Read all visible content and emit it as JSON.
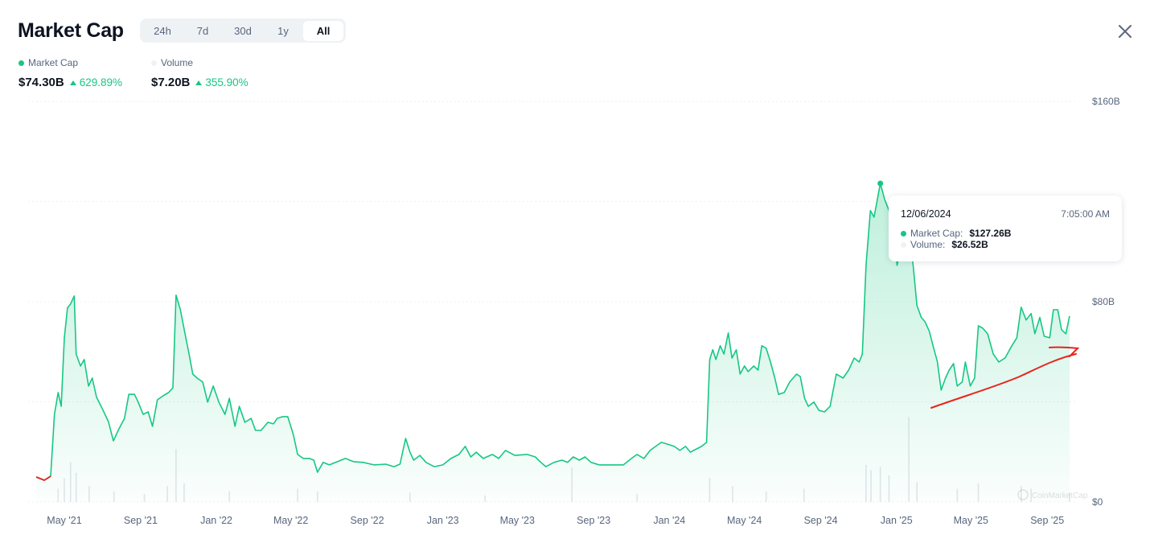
{
  "header": {
    "title": "Market Cap",
    "ranges": [
      "24h",
      "7d",
      "30d",
      "1y",
      "All"
    ],
    "active_range": "All",
    "close_icon": "close-icon"
  },
  "legend": {
    "market_cap": {
      "label": "Market Cap",
      "value": "$74.30B",
      "change": "629.89%",
      "color": "#16c784"
    },
    "volume": {
      "label": "Volume",
      "value": "$7.20B",
      "change": "355.90%",
      "color": "#eff2f5"
    }
  },
  "tooltip": {
    "date": "12/06/2024",
    "time": "7:05:00 AM",
    "market_cap_label": "Market Cap:",
    "market_cap_value": "$127.26B",
    "volume_label": "Volume:",
    "volume_value": "$26.52B"
  },
  "watermark": "CoinMarketCap",
  "chart_data": {
    "type": "area",
    "ylim": [
      0,
      160
    ],
    "y_ticks": [
      {
        "value": 0,
        "label": "$0"
      },
      {
        "value": 80,
        "label": "$80B"
      },
      {
        "value": 160,
        "label": "$160B"
      }
    ],
    "y_grid": [
      0,
      40,
      80,
      120,
      160
    ],
    "x_ticks": [
      {
        "date": "2021-05-01",
        "label": "May '21"
      },
      {
        "date": "2021-09-01",
        "label": "Sep '21"
      },
      {
        "date": "2022-01-01",
        "label": "Jan '22"
      },
      {
        "date": "2022-05-01",
        "label": "May '22"
      },
      {
        "date": "2022-09-01",
        "label": "Sep '22"
      },
      {
        "date": "2023-01-01",
        "label": "Jan '23"
      },
      {
        "date": "2023-05-01",
        "label": "May '23"
      },
      {
        "date": "2023-09-01",
        "label": "Sep '23"
      },
      {
        "date": "2024-01-01",
        "label": "Jan '24"
      },
      {
        "date": "2024-05-01",
        "label": "May '24"
      },
      {
        "date": "2024-09-01",
        "label": "Sep '24"
      },
      {
        "date": "2025-01-01",
        "label": "Jan '25"
      },
      {
        "date": "2025-05-01",
        "label": "May '25"
      },
      {
        "date": "2025-09-01",
        "label": "Sep '25"
      }
    ],
    "grid": true,
    "highlight": {
      "date": "2024-12-06",
      "value": 127.26
    },
    "series": [
      {
        "name": "Market Cap",
        "color": "#16c784",
        "unit": "B USD",
        "points": [
          [
            "2021-03-17",
            10.0
          ],
          [
            "2021-03-30",
            8.7
          ],
          [
            "2021-04-09",
            10.3
          ],
          [
            "2021-04-15",
            35.0
          ],
          [
            "2021-04-21",
            43.7
          ],
          [
            "2021-04-26",
            38.2
          ],
          [
            "2021-05-01",
            65.6
          ],
          [
            "2021-05-06",
            77.5
          ],
          [
            "2021-05-11",
            79.1
          ],
          [
            "2021-05-17",
            82.3
          ],
          [
            "2021-05-20",
            59.1
          ],
          [
            "2021-05-27",
            54.3
          ],
          [
            "2021-06-02",
            56.9
          ],
          [
            "2021-06-09",
            46.3
          ],
          [
            "2021-06-15",
            49.5
          ],
          [
            "2021-06-22",
            41.8
          ],
          [
            "2021-07-02",
            36.9
          ],
          [
            "2021-07-11",
            32.1
          ],
          [
            "2021-07-19",
            24.4
          ],
          [
            "2021-07-28",
            29.2
          ],
          [
            "2021-08-06",
            33.4
          ],
          [
            "2021-08-13",
            43.0
          ],
          [
            "2021-08-22",
            43.0
          ],
          [
            "2021-08-28",
            39.9
          ],
          [
            "2021-09-05",
            35.0
          ],
          [
            "2021-09-13",
            36.0
          ],
          [
            "2021-09-20",
            30.2
          ],
          [
            "2021-09-28",
            40.8
          ],
          [
            "2021-10-07",
            42.4
          ],
          [
            "2021-10-16",
            43.7
          ],
          [
            "2021-10-23",
            45.6
          ],
          [
            "2021-10-28",
            82.6
          ],
          [
            "2021-11-04",
            76.8
          ],
          [
            "2021-11-11",
            67.8
          ],
          [
            "2021-11-18",
            59.1
          ],
          [
            "2021-11-24",
            51.1
          ],
          [
            "2021-12-01",
            49.5
          ],
          [
            "2021-12-10",
            47.9
          ],
          [
            "2021-12-18",
            39.9
          ],
          [
            "2021-12-27",
            46.3
          ],
          [
            "2022-01-05",
            39.9
          ],
          [
            "2022-01-15",
            35.0
          ],
          [
            "2022-01-22",
            41.4
          ],
          [
            "2022-01-31",
            30.2
          ],
          [
            "2022-02-07",
            38.2
          ],
          [
            "2022-02-16",
            31.8
          ],
          [
            "2022-02-26",
            33.4
          ],
          [
            "2022-03-05",
            28.6
          ],
          [
            "2022-03-14",
            28.6
          ],
          [
            "2022-03-25",
            31.8
          ],
          [
            "2022-04-03",
            31.2
          ],
          [
            "2022-04-09",
            33.4
          ],
          [
            "2022-04-18",
            34.1
          ],
          [
            "2022-04-26",
            34.1
          ],
          [
            "2022-05-05",
            27.0
          ],
          [
            "2022-05-12",
            19.0
          ],
          [
            "2022-05-21",
            17.4
          ],
          [
            "2022-05-31",
            17.4
          ],
          [
            "2022-06-07",
            16.7
          ],
          [
            "2022-06-13",
            11.9
          ],
          [
            "2022-06-22",
            15.8
          ],
          [
            "2022-07-02",
            14.8
          ],
          [
            "2022-07-15",
            16.1
          ],
          [
            "2022-07-28",
            17.4
          ],
          [
            "2022-08-10",
            16.1
          ],
          [
            "2022-08-26",
            15.8
          ],
          [
            "2022-09-12",
            14.8
          ],
          [
            "2022-10-01",
            15.1
          ],
          [
            "2022-10-14",
            14.1
          ],
          [
            "2022-10-24",
            15.1
          ],
          [
            "2022-11-02",
            25.4
          ],
          [
            "2022-11-09",
            19.9
          ],
          [
            "2022-11-15",
            16.7
          ],
          [
            "2022-11-25",
            18.6
          ],
          [
            "2022-12-05",
            15.8
          ],
          [
            "2022-12-18",
            14.1
          ],
          [
            "2023-01-01",
            14.8
          ],
          [
            "2023-01-14",
            17.4
          ],
          [
            "2023-01-27",
            19.0
          ],
          [
            "2023-02-06",
            22.2
          ],
          [
            "2023-02-15",
            18.0
          ],
          [
            "2023-02-24",
            19.9
          ],
          [
            "2023-03-07",
            17.4
          ],
          [
            "2023-03-22",
            19.0
          ],
          [
            "2023-04-01",
            17.4
          ],
          [
            "2023-04-12",
            20.6
          ],
          [
            "2023-04-27",
            18.6
          ],
          [
            "2023-05-17",
            19.0
          ],
          [
            "2023-05-30",
            18.0
          ],
          [
            "2023-06-08",
            15.8
          ],
          [
            "2023-06-16",
            14.1
          ],
          [
            "2023-06-29",
            15.8
          ],
          [
            "2023-07-12",
            16.7
          ],
          [
            "2023-07-21",
            15.8
          ],
          [
            "2023-07-30",
            18.0
          ],
          [
            "2023-08-09",
            16.7
          ],
          [
            "2023-08-18",
            18.0
          ],
          [
            "2023-08-28",
            15.8
          ],
          [
            "2023-09-10",
            14.8
          ],
          [
            "2023-09-30",
            14.8
          ],
          [
            "2023-10-19",
            14.8
          ],
          [
            "2023-11-01",
            17.4
          ],
          [
            "2023-11-10",
            19.0
          ],
          [
            "2023-11-21",
            17.4
          ],
          [
            "2023-12-01",
            20.6
          ],
          [
            "2023-12-10",
            22.2
          ],
          [
            "2023-12-19",
            23.8
          ],
          [
            "2023-12-29",
            23.1
          ],
          [
            "2024-01-09",
            22.2
          ],
          [
            "2024-01-18",
            20.6
          ],
          [
            "2024-01-27",
            22.2
          ],
          [
            "2024-02-04",
            19.9
          ],
          [
            "2024-02-14",
            21.2
          ],
          [
            "2024-02-22",
            22.2
          ],
          [
            "2024-03-01",
            23.8
          ],
          [
            "2024-03-06",
            56.9
          ],
          [
            "2024-03-11",
            60.8
          ],
          [
            "2024-03-16",
            56.9
          ],
          [
            "2024-03-23",
            62.4
          ],
          [
            "2024-03-29",
            59.1
          ],
          [
            "2024-04-05",
            67.5
          ],
          [
            "2024-04-11",
            57.5
          ],
          [
            "2024-04-18",
            60.8
          ],
          [
            "2024-04-24",
            51.1
          ],
          [
            "2024-05-01",
            54.3
          ],
          [
            "2024-05-07",
            52.1
          ],
          [
            "2024-05-16",
            54.3
          ],
          [
            "2024-05-23",
            52.7
          ],
          [
            "2024-05-29",
            62.4
          ],
          [
            "2024-06-05",
            61.4
          ],
          [
            "2024-06-12",
            55.9
          ],
          [
            "2024-06-19",
            49.5
          ],
          [
            "2024-06-25",
            43.0
          ],
          [
            "2024-07-04",
            43.7
          ],
          [
            "2024-07-13",
            47.9
          ],
          [
            "2024-07-24",
            51.1
          ],
          [
            "2024-07-30",
            50.1
          ],
          [
            "2024-08-06",
            41.4
          ],
          [
            "2024-08-12",
            38.2
          ],
          [
            "2024-08-21",
            39.9
          ],
          [
            "2024-08-29",
            36.6
          ],
          [
            "2024-09-07",
            36.0
          ],
          [
            "2024-09-16",
            38.2
          ],
          [
            "2024-09-26",
            51.1
          ],
          [
            "2024-10-07",
            49.5
          ],
          [
            "2024-10-16",
            52.7
          ],
          [
            "2024-10-25",
            57.5
          ],
          [
            "2024-11-02",
            55.9
          ],
          [
            "2024-11-07",
            59.1
          ],
          [
            "2024-11-13",
            94.5
          ],
          [
            "2024-11-20",
            116.4
          ],
          [
            "2024-11-26",
            113.8
          ],
          [
            "2024-12-02",
            122.0
          ],
          [
            "2024-12-06",
            127.26
          ],
          [
            "2024-12-13",
            120.8
          ],
          [
            "2024-12-20",
            116.4
          ],
          [
            "2024-12-26",
            110.6
          ],
          [
            "2025-01-02",
            94.5
          ],
          [
            "2025-01-08",
            100.9
          ],
          [
            "2025-01-15",
            97.7
          ],
          [
            "2025-01-21",
            107.3
          ],
          [
            "2025-01-28",
            94.5
          ],
          [
            "2025-02-03",
            78.5
          ],
          [
            "2025-02-10",
            73.7
          ],
          [
            "2025-02-16",
            72.0
          ],
          [
            "2025-02-23",
            68.2
          ],
          [
            "2025-03-01",
            62.4
          ],
          [
            "2025-03-08",
            56.0
          ],
          [
            "2025-03-14",
            44.7
          ],
          [
            "2025-03-21",
            49.5
          ],
          [
            "2025-03-27",
            52.7
          ],
          [
            "2025-04-03",
            55.3
          ],
          [
            "2025-04-09",
            46.3
          ],
          [
            "2025-04-17",
            47.9
          ],
          [
            "2025-04-22",
            55.9
          ],
          [
            "2025-04-30",
            46.3
          ],
          [
            "2025-05-07",
            49.5
          ],
          [
            "2025-05-13",
            70.4
          ],
          [
            "2025-05-20",
            69.4
          ],
          [
            "2025-05-28",
            67.2
          ],
          [
            "2025-06-06",
            59.1
          ],
          [
            "2025-06-15",
            55.9
          ],
          [
            "2025-06-25",
            57.5
          ],
          [
            "2025-07-06",
            62.4
          ],
          [
            "2025-07-14",
            65.6
          ],
          [
            "2025-07-21",
            77.8
          ],
          [
            "2025-07-29",
            72.7
          ],
          [
            "2025-08-06",
            75.3
          ],
          [
            "2025-08-12",
            67.2
          ],
          [
            "2025-08-20",
            73.7
          ],
          [
            "2025-08-27",
            66.2
          ],
          [
            "2025-09-05",
            65.6
          ],
          [
            "2025-09-11",
            76.8
          ],
          [
            "2025-09-18",
            76.8
          ],
          [
            "2025-09-24",
            68.8
          ],
          [
            "2025-10-01",
            67.2
          ],
          [
            "2025-10-07",
            74.3
          ]
        ]
      },
      {
        "name": "Volume",
        "color": "#e6e9ee",
        "unit": "B USD",
        "points": [
          [
            "2021-04-21",
            10
          ],
          [
            "2021-05-01",
            18
          ],
          [
            "2021-05-11",
            30
          ],
          [
            "2021-05-20",
            22
          ],
          [
            "2021-06-10",
            12
          ],
          [
            "2021-07-20",
            8
          ],
          [
            "2021-09-07",
            6
          ],
          [
            "2021-10-14",
            12
          ],
          [
            "2021-10-28",
            40
          ],
          [
            "2021-11-10",
            14
          ],
          [
            "2022-01-22",
            8
          ],
          [
            "2022-05-12",
            10
          ],
          [
            "2022-06-13",
            8
          ],
          [
            "2022-11-09",
            7
          ],
          [
            "2023-03-10",
            5
          ],
          [
            "2023-07-28",
            26
          ],
          [
            "2023-11-10",
            6
          ],
          [
            "2024-03-06",
            18
          ],
          [
            "2024-04-12",
            12
          ],
          [
            "2024-06-05",
            8
          ],
          [
            "2024-08-05",
            10
          ],
          [
            "2024-11-13",
            28
          ],
          [
            "2024-11-21",
            24
          ],
          [
            "2024-12-06",
            26.52
          ],
          [
            "2024-12-20",
            20
          ],
          [
            "2025-01-21",
            64
          ],
          [
            "2025-02-03",
            15
          ],
          [
            "2025-04-09",
            10
          ],
          [
            "2025-05-13",
            14
          ],
          [
            "2025-07-21",
            12
          ],
          [
            "2025-08-06",
            10
          ],
          [
            "2025-10-07",
            7.2
          ]
        ]
      }
    ]
  }
}
